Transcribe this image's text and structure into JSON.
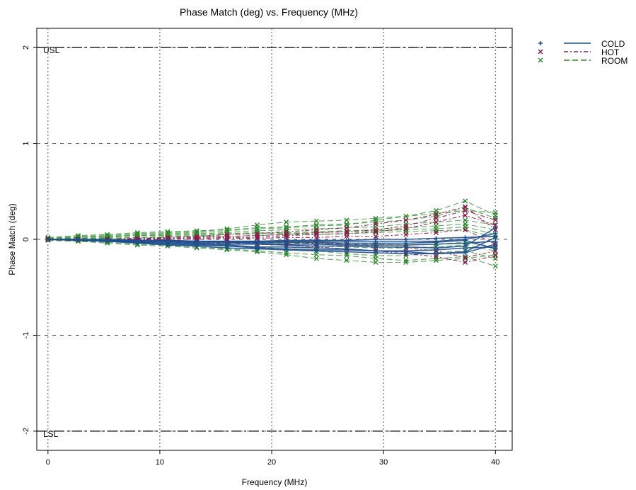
{
  "chart_data": {
    "type": "line",
    "title": "Phase Match (deg) vs. Frequency (MHz)",
    "xlabel": "Frequency (MHz)",
    "ylabel": "Phase Match (deg)",
    "xlim": [
      -1,
      41.5
    ],
    "ylim": [
      -2.2,
      2.2
    ],
    "x_ticks": [
      0,
      10,
      20,
      30,
      40
    ],
    "x_tick_labels": [
      "0",
      "10",
      "20",
      "30",
      "40"
    ],
    "y_ticks": [
      -2,
      -1,
      0,
      1,
      2
    ],
    "y_tick_labels": [
      "-2",
      "-1",
      "0",
      "1",
      "2"
    ],
    "grid": true,
    "legend_position": "right",
    "x": [
      0,
      2.7,
      5.3,
      8,
      10.7,
      13.3,
      16,
      18.7,
      21.3,
      24,
      26.7,
      29.3,
      32,
      34.7,
      37.3,
      40
    ],
    "limits": [
      {
        "name": "USL",
        "label": "USL",
        "value": 2
      },
      {
        "name": "LSL",
        "label": "LSL",
        "value": -2
      }
    ],
    "series": [
      {
        "name": "COLD",
        "marker": "+",
        "color": "#1f4f8f",
        "dash": "solid",
        "curves": [
          [
            0,
            -0.01,
            -0.02,
            -0.03,
            -0.04,
            -0.05,
            -0.06,
            -0.08,
            -0.08,
            -0.09,
            -0.1,
            -0.12,
            -0.13,
            -0.15,
            -0.14,
            -0.05
          ],
          [
            0,
            -0.01,
            -0.01,
            -0.02,
            -0.03,
            -0.04,
            -0.05,
            -0.05,
            -0.06,
            -0.07,
            -0.07,
            -0.08,
            -0.08,
            -0.09,
            -0.07,
            0.12
          ],
          [
            0,
            0,
            -0.01,
            -0.01,
            -0.02,
            -0.02,
            -0.03,
            -0.03,
            -0.03,
            -0.03,
            -0.04,
            -0.04,
            -0.04,
            -0.03,
            -0.01,
            -0.1
          ],
          [
            0,
            0,
            0,
            -0.01,
            -0.01,
            -0.02,
            -0.02,
            -0.02,
            -0.01,
            -0.01,
            -0.01,
            0,
            0,
            0.01,
            0.02,
            0.03
          ],
          [
            0,
            -0.01,
            -0.02,
            -0.04,
            -0.06,
            -0.07,
            -0.09,
            -0.1,
            -0.11,
            -0.12,
            -0.13,
            -0.14,
            -0.15,
            -0.15,
            -0.13,
            0.02
          ],
          [
            0,
            0,
            -0.01,
            -0.02,
            -0.02,
            -0.03,
            -0.03,
            -0.04,
            -0.05,
            -0.05,
            -0.06,
            -0.06,
            -0.06,
            -0.05,
            -0.04,
            -0.02
          ],
          [
            0,
            -0.01,
            -0.02,
            -0.03,
            -0.05,
            -0.06,
            -0.07,
            -0.09,
            -0.1,
            -0.11,
            -0.11,
            -0.12,
            -0.12,
            -0.11,
            -0.09,
            -0.08
          ],
          [
            0,
            0,
            -0.01,
            -0.01,
            -0.01,
            -0.02,
            -0.02,
            -0.02,
            -0.02,
            -0.02,
            -0.02,
            -0.02,
            -0.02,
            -0.02,
            0,
            0.06
          ]
        ]
      },
      {
        "name": "HOT",
        "marker": "x",
        "color": "#8b1a4a",
        "dash": "6,3,2,3",
        "curves": [
          [
            0,
            0,
            0,
            0.01,
            0.01,
            0.02,
            0.03,
            0.04,
            0.05,
            0.07,
            0.08,
            0.1,
            0.14,
            0.22,
            0.3,
            0.2
          ],
          [
            0,
            0,
            -0.01,
            -0.01,
            -0.02,
            -0.03,
            -0.04,
            -0.05,
            -0.06,
            -0.08,
            -0.1,
            -0.12,
            -0.15,
            -0.18,
            -0.24,
            -0.17
          ],
          [
            0,
            0,
            0,
            0,
            0.01,
            0.01,
            0.02,
            0.02,
            0.04,
            0.05,
            0.06,
            0.08,
            0.11,
            0.18,
            0.25,
            0.15
          ],
          [
            0,
            0,
            -0.01,
            -0.01,
            -0.01,
            -0.02,
            -0.02,
            -0.03,
            -0.03,
            -0.04,
            -0.05,
            -0.07,
            -0.09,
            -0.12,
            -0.19,
            -0.12
          ],
          [
            0,
            0,
            0,
            0.01,
            0.02,
            0.03,
            0.05,
            0.06,
            0.08,
            0.1,
            0.12,
            0.16,
            0.2,
            0.26,
            0.34,
            0.1
          ],
          [
            0,
            0,
            0,
            0,
            0,
            0,
            0.01,
            0.01,
            0.02,
            0.02,
            0.03,
            0.03,
            0.05,
            0.07,
            0.1,
            -0.05
          ]
        ]
      },
      {
        "name": "ROOM",
        "marker": "x",
        "color": "#2e8b2e",
        "dash": "8,4",
        "curves": [
          [
            0.02,
            0.04,
            0.05,
            0.07,
            0.08,
            0.09,
            0.1,
            0.12,
            0.13,
            0.15,
            0.16,
            0.18,
            0.2,
            0.24,
            0.33,
            0.22
          ],
          [
            0,
            0.02,
            0.03,
            0.05,
            0.06,
            0.07,
            0.09,
            0.11,
            0.12,
            0.14,
            0.15,
            0.2,
            0.24,
            0.3,
            0.4,
            0.25
          ],
          [
            -0.01,
            -0.02,
            -0.03,
            -0.05,
            -0.06,
            -0.08,
            -0.1,
            -0.12,
            -0.14,
            -0.16,
            -0.17,
            -0.2,
            -0.22,
            -0.2,
            -0.18,
            -0.28
          ],
          [
            0,
            -0.01,
            -0.02,
            -0.03,
            -0.04,
            -0.05,
            -0.07,
            -0.08,
            -0.1,
            -0.12,
            -0.15,
            -0.17,
            -0.17,
            -0.14,
            -0.12,
            -0.2
          ],
          [
            0.01,
            0.03,
            0.04,
            0.06,
            0.07,
            0.08,
            0.11,
            0.15,
            0.18,
            0.19,
            0.2,
            0.22,
            0.24,
            0.27,
            0.3,
            0.28
          ],
          [
            0,
            0.01,
            0.02,
            0.04,
            0.05,
            0.06,
            0.07,
            0.09,
            0.1,
            0.11,
            0.12,
            0.13,
            0.16,
            0.18,
            0.2,
            0.15
          ],
          [
            0,
            0,
            0.01,
            0.02,
            0.03,
            0.04,
            0.05,
            0.06,
            0.07,
            0.08,
            0.09,
            0.1,
            0.12,
            0.14,
            0.16,
            0.1
          ],
          [
            0,
            -0.01,
            -0.01,
            -0.02,
            -0.03,
            -0.04,
            -0.04,
            -0.05,
            -0.06,
            -0.07,
            -0.08,
            -0.09,
            -0.09,
            -0.08,
            -0.06,
            -0.12
          ],
          [
            0.01,
            0.02,
            0.03,
            0.04,
            0.04,
            0.05,
            0.06,
            0.07,
            0.06,
            0.07,
            0.08,
            0.09,
            0.1,
            0.11,
            0.13,
            0.05
          ],
          [
            -0.01,
            -0.02,
            -0.04,
            -0.06,
            -0.07,
            -0.09,
            -0.11,
            -0.13,
            -0.16,
            -0.2,
            -0.22,
            -0.24,
            -0.24,
            -0.22,
            -0.2,
            -0.16
          ],
          [
            0,
            0.01,
            0.01,
            0.02,
            0.02,
            0.03,
            0.03,
            0.04,
            0.05,
            0.05,
            0.06,
            0.07,
            0.08,
            0.09,
            0.1,
            0.02
          ],
          [
            0,
            0,
            -0.01,
            -0.01,
            -0.02,
            -0.02,
            -0.03,
            -0.03,
            -0.04,
            -0.04,
            -0.05,
            -0.05,
            -0.06,
            -0.05,
            -0.03,
            -0.08
          ]
        ]
      }
    ]
  }
}
